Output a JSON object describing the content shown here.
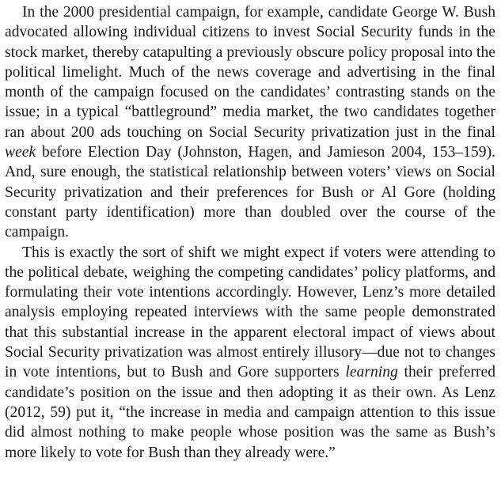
{
  "paragraphs": [
    {
      "parts": [
        {
          "text": "In the 2000 presidential campaign, for example, candidate George W. Bush advocated allowing individual citizens to invest Social Security funds in the stock market, thereby catapulting a previously obscure policy proposal into the political limelight. Much of the news coverage and advertising in the final month of the campaign focused on the candidates’ contrasting stands on the issue; in a typical “battleground” media market, the two candidates together ran about 200 ads touching on Social Security privatization just in the final ",
          "italic": false
        },
        {
          "text": "week",
          "italic": true
        },
        {
          "text": " before Election Day (Johnston, Hagen, and Jamieson 2004, 153–159). And, sure enough, the statistical relationship between voters’ views on Social Security privatization and their preferences for Bush or Al Gore (holding constant party identification) more than doubled over the course of the campaign.",
          "italic": false
        }
      ]
    },
    {
      "parts": [
        {
          "text": "This is exactly the sort of shift we might expect if voters were attending to the political debate, weighing the competing candidates’ policy platforms, and formulating their vote intentions accordingly. However, Lenz’s more detailed analysis employing repeated interviews with the same people demonstrated that this substantial increase in the apparent electoral impact of views about Social Security privatization was almost entirely illusory—due not to changes in vote intentions, but to Bush and Gore supporters ",
          "italic": false
        },
        {
          "text": "learning",
          "italic": true
        },
        {
          "text": " their preferred candidate’s position on the issue and then adopting it as their own. As Lenz (2012, 59) put it, “the increase in media and campaign attention to this issue did almost nothing to make people whose position was the same as Bush’s more likely to vote for Bush than they already were.”",
          "italic": false
        }
      ]
    }
  ]
}
